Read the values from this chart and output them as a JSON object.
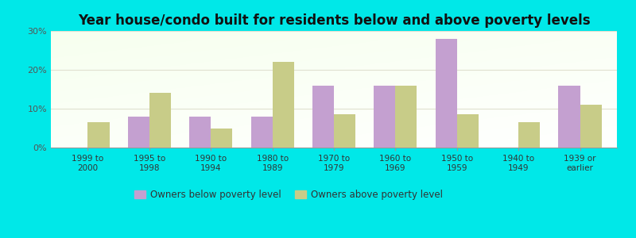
{
  "title": "Year house/condo built for residents below and above poverty levels",
  "categories": [
    "1999 to\n2000",
    "1995 to\n1998",
    "1990 to\n1994",
    "1980 to\n1989",
    "1970 to\n1979",
    "1960 to\n1969",
    "1950 to\n1959",
    "1940 to\n1949",
    "1939 or\nearlier"
  ],
  "below_poverty": [
    0,
    8.0,
    8.0,
    8.0,
    16.0,
    16.0,
    28.0,
    0,
    16.0
  ],
  "above_poverty": [
    6.5,
    14.0,
    5.0,
    22.0,
    8.5,
    16.0,
    8.5,
    6.5,
    11.0
  ],
  "below_color": "#c4a0d0",
  "above_color": "#c8cc88",
  "ylim": [
    0,
    30
  ],
  "yticks": [
    0,
    10,
    20,
    30
  ],
  "ytick_labels": [
    "0%",
    "10%",
    "20%",
    "30%"
  ],
  "bg_outer": "#00e8e8",
  "grid_color": "#e0e0d0",
  "legend_below_label": "Owners below poverty level",
  "legend_above_label": "Owners above poverty level",
  "title_fontsize": 12,
  "bar_width": 0.35
}
